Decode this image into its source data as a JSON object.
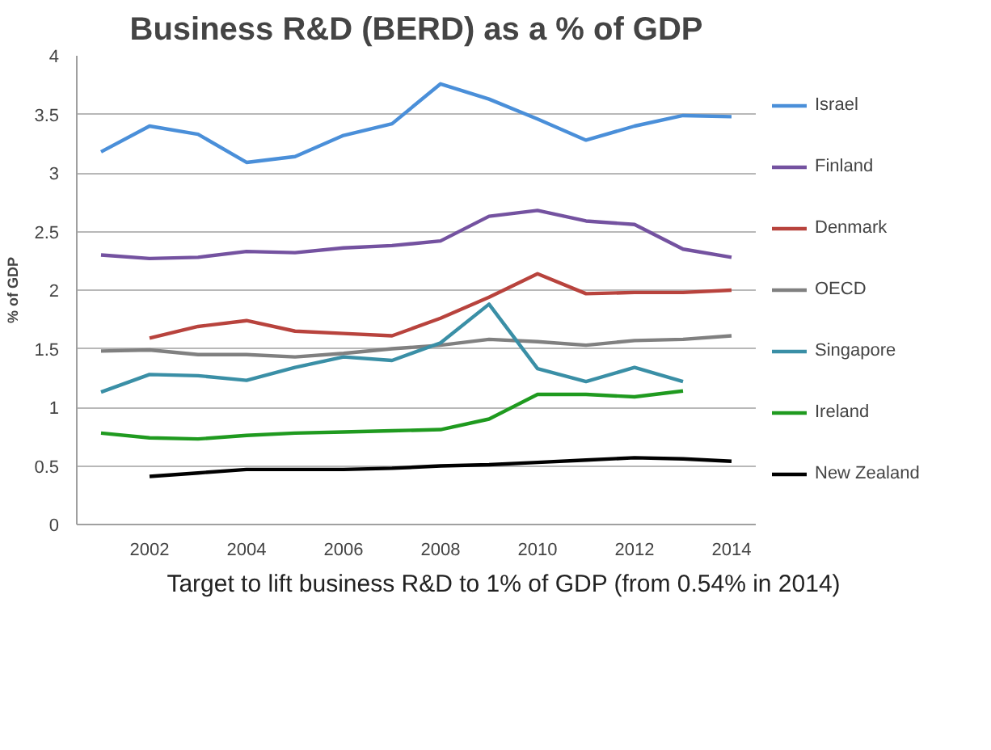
{
  "chart_data": {
    "type": "line",
    "title": "Business R&D (BERD) as a % of GDP",
    "ylabel": "% of GDP",
    "x": [
      2001,
      2002,
      2003,
      2004,
      2005,
      2006,
      2007,
      2008,
      2009,
      2010,
      2011,
      2012,
      2013,
      2014
    ],
    "xlim": [
      2000.5,
      2014.5
    ],
    "xticks": [
      2002,
      2004,
      2006,
      2008,
      2010,
      2012,
      2014
    ],
    "ylim": [
      0,
      4
    ],
    "yticks": [
      0,
      0.5,
      1,
      1.5,
      2,
      2.5,
      3,
      3.5,
      4
    ],
    "grid": "y",
    "legend": "right",
    "marker": "none",
    "line_style": "solid",
    "annotations": [
      "Target to lift business R&D to 1% of GDP (from 0.54% in 2014)"
    ],
    "series": [
      {
        "name": "Israel",
        "color": "#4a8fd9",
        "values": [
          3.18,
          3.4,
          3.33,
          3.09,
          3.14,
          3.32,
          3.42,
          3.76,
          3.63,
          3.46,
          3.28,
          3.4,
          3.49,
          3.48
        ]
      },
      {
        "name": "Finland",
        "color": "#7452a0",
        "values": [
          2.3,
          2.27,
          2.28,
          2.33,
          2.32,
          2.36,
          2.38,
          2.42,
          2.63,
          2.68,
          2.59,
          2.56,
          2.35,
          2.28
        ]
      },
      {
        "name": "Denmark",
        "color": "#b8433d",
        "values": [
          null,
          1.59,
          1.69,
          1.74,
          1.65,
          1.63,
          1.61,
          1.76,
          1.94,
          2.14,
          1.97,
          1.98,
          1.98,
          2.0
        ]
      },
      {
        "name": "OECD",
        "color": "#808080",
        "values": [
          1.48,
          1.49,
          1.45,
          1.45,
          1.43,
          1.46,
          1.5,
          1.53,
          1.58,
          1.56,
          1.53,
          1.57,
          1.58,
          1.61
        ]
      },
      {
        "name": "Singapore",
        "color": "#3a8fa6",
        "values": [
          1.13,
          1.28,
          1.27,
          1.23,
          1.34,
          1.43,
          1.4,
          1.55,
          1.88,
          1.33,
          1.22,
          1.34,
          1.22,
          null
        ]
      },
      {
        "name": "Ireland",
        "color": "#1f9a1f",
        "values": [
          0.78,
          0.74,
          0.73,
          0.76,
          0.78,
          0.79,
          0.8,
          0.81,
          0.9,
          1.11,
          1.11,
          1.09,
          1.14,
          null
        ]
      },
      {
        "name": "New Zealand",
        "color": "#000000",
        "values": [
          null,
          0.41,
          0.44,
          0.47,
          0.47,
          0.47,
          0.48,
          0.5,
          0.51,
          0.53,
          0.55,
          0.57,
          0.56,
          0.54
        ]
      }
    ]
  }
}
